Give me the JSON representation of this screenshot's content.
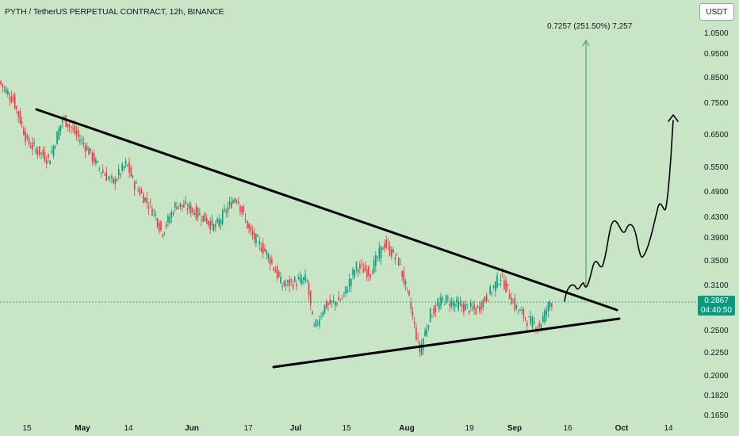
{
  "header": {
    "title": "PYTH / TetherUS PERPETUAL CONTRACT, 12h, BINANCE",
    "currency": "USDT"
  },
  "price_tag": {
    "price": "0.2867",
    "countdown": "04:40:50"
  },
  "projection": {
    "label": "0.7257 (251.50%) 7,257"
  },
  "colors": {
    "background": "#c8e6c5",
    "up": "#089981",
    "down": "#f23645",
    "projection": "#2e9e44",
    "trendline": "#000000"
  },
  "chart_data": {
    "type": "candlestick",
    "title": "PYTH / TetherUS PERPETUAL CONTRACT, 12h, BINANCE",
    "y_scale": "log",
    "ylim": [
      0.155,
      1.12
    ],
    "x_ticks": [
      "15",
      "May",
      "14",
      "Jun",
      "17",
      "Jul",
      "15",
      "Aug",
      "19",
      "Sep",
      "16",
      "Oct",
      "14"
    ],
    "y_ticks": [
      "1.0500",
      "0.9500",
      "0.8500",
      "0.7500",
      "0.6500",
      "0.5500",
      "0.4900",
      "0.4300",
      "0.3900",
      "0.3500",
      "0.3100",
      "0.2500",
      "0.2250",
      "0.2000",
      "0.1820",
      "0.1650"
    ],
    "last_price": 0.2867,
    "close_series": [
      {
        "date": "2024-04-07",
        "close": 0.85
      },
      {
        "date": "2024-04-12",
        "close": 0.76
      },
      {
        "date": "2024-04-16",
        "close": 0.62
      },
      {
        "date": "2024-04-22",
        "close": 0.57
      },
      {
        "date": "2024-04-26",
        "close": 0.7
      },
      {
        "date": "2024-05-03",
        "close": 0.6
      },
      {
        "date": "2024-05-06",
        "close": 0.55
      },
      {
        "date": "2024-05-10",
        "close": 0.51
      },
      {
        "date": "2024-05-14",
        "close": 0.56
      },
      {
        "date": "2024-05-16",
        "close": 0.51
      },
      {
        "date": "2024-05-22",
        "close": 0.44
      },
      {
        "date": "2024-05-24",
        "close": 0.4
      },
      {
        "date": "2024-05-28",
        "close": 0.46
      },
      {
        "date": "2024-06-01",
        "close": 0.45
      },
      {
        "date": "2024-06-05",
        "close": 0.43
      },
      {
        "date": "2024-06-08",
        "close": 0.41
      },
      {
        "date": "2024-06-14",
        "close": 0.48
      },
      {
        "date": "2024-06-18",
        "close": 0.4
      },
      {
        "date": "2024-06-23",
        "close": 0.36
      },
      {
        "date": "2024-06-27",
        "close": 0.31
      },
      {
        "date": "2024-07-04",
        "close": 0.32
      },
      {
        "date": "2024-07-06",
        "close": 0.25
      },
      {
        "date": "2024-07-09",
        "close": 0.28
      },
      {
        "date": "2024-07-14",
        "close": 0.29
      },
      {
        "date": "2024-07-18",
        "close": 0.34
      },
      {
        "date": "2024-07-22",
        "close": 0.33
      },
      {
        "date": "2024-07-26",
        "close": 0.38
      },
      {
        "date": "2024-07-30",
        "close": 0.35
      },
      {
        "date": "2024-08-02",
        "close": 0.29
      },
      {
        "date": "2024-08-05",
        "close": 0.225
      },
      {
        "date": "2024-08-08",
        "close": 0.27
      },
      {
        "date": "2024-08-12",
        "close": 0.29
      },
      {
        "date": "2024-08-17",
        "close": 0.28
      },
      {
        "date": "2024-08-21",
        "close": 0.275
      },
      {
        "date": "2024-08-25",
        "close": 0.3
      },
      {
        "date": "2024-08-28",
        "close": 0.325
      },
      {
        "date": "2024-09-01",
        "close": 0.28
      },
      {
        "date": "2024-09-05",
        "close": 0.26
      },
      {
        "date": "2024-09-08",
        "close": 0.255
      },
      {
        "date": "2024-09-11",
        "close": 0.2867
      }
    ]
  }
}
